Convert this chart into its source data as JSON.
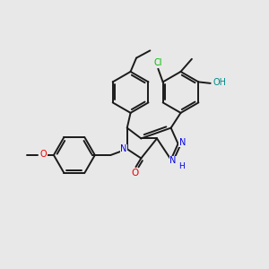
{
  "bg_color": "#e8e8e8",
  "bond_color": "#1a1a1a",
  "bond_width": 1.4,
  "N_color": "#0000ee",
  "O_color": "#ee0000",
  "Cl_color": "#00bb00",
  "OH_color": "#008888",
  "figsize": [
    3.0,
    3.0
  ],
  "dpi": 100,
  "xlim": [
    0,
    10
  ],
  "ylim": [
    0,
    10
  ]
}
